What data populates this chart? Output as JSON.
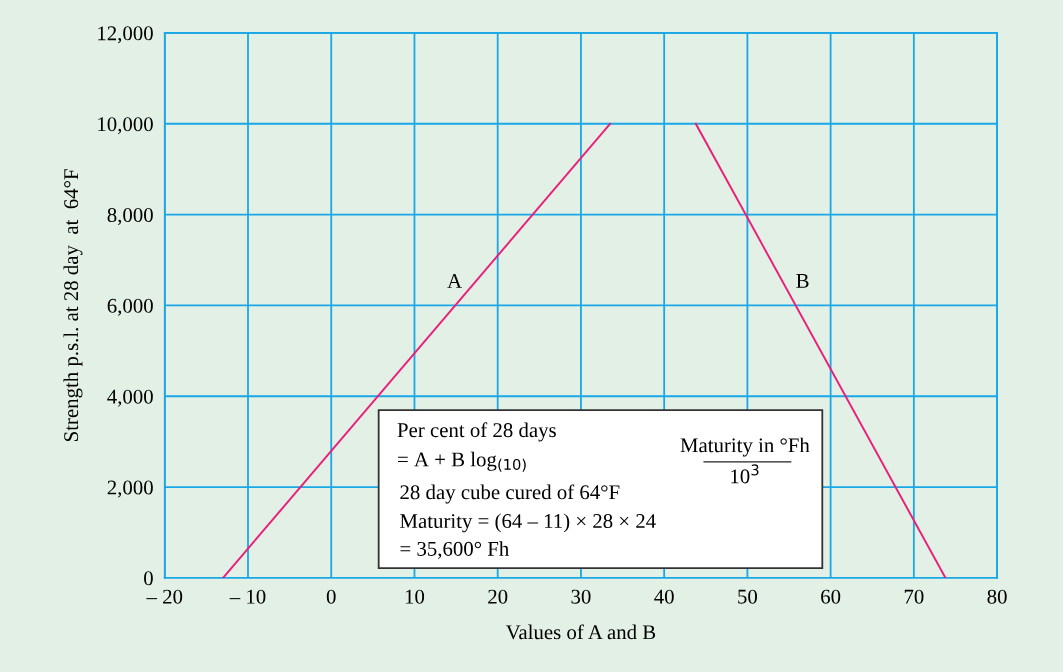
{
  "chart_data": {
    "type": "line",
    "xlabel": "Values of A and B",
    "ylabel": "Strength p.s.l. at 28 day  at  64°F",
    "series": [
      {
        "name": "A",
        "color": "#e8207a",
        "x": [
          -13,
          33.5
        ],
        "values": [
          0,
          10000
        ]
      },
      {
        "name": "B",
        "color": "#e8207a",
        "x": [
          43.8,
          73.8
        ],
        "values": [
          10000,
          0
        ]
      }
    ],
    "xlim": [
      -20,
      80
    ],
    "xticks": [
      {
        "value": -20,
        "label": "– 20"
      },
      {
        "value": -10,
        "label": "– 10"
      },
      0,
      10,
      20,
      30,
      40,
      50,
      60,
      70,
      80
    ],
    "ylim": [
      0,
      12000
    ],
    "yticks": [
      {
        "value": 0,
        "label": "0"
      },
      {
        "value": 2000,
        "label": "2,000"
      },
      {
        "value": 4000,
        "label": "4,000"
      },
      {
        "value": 6000,
        "label": "6,000"
      },
      {
        "value": 8000,
        "label": "8,000"
      },
      {
        "value": 10000,
        "label": "10,000"
      },
      {
        "value": 12000,
        "label": "12,000"
      }
    ],
    "grid": true,
    "marker": "none",
    "line_style": "solid",
    "annotations": [
      "Per cent of 28 days",
      "= A + B log$_{(10)}$",
      "Maturity in °Fh",
      "10$^{3}$",
      "28 day cube cured of 64°F",
      "Maturity = (64 – 11) × 28 × 24",
      "= 35,600° Fh"
    ]
  }
}
